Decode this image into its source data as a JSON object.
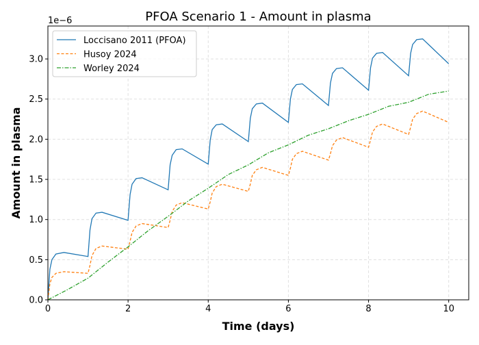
{
  "chart_data": {
    "type": "line",
    "title": "PFOA Scenario 1 - Amount in plasma",
    "xlabel": "Time (days)",
    "ylabel": "Amount in plasma",
    "y_offset_label": "1e−6",
    "xlim": [
      0,
      10.5
    ],
    "ylim": [
      0,
      3.41
    ],
    "xticks": [
      0,
      2,
      4,
      6,
      8,
      10
    ],
    "xtick_labels": [
      "0",
      "2",
      "4",
      "6",
      "8",
      "10"
    ],
    "yticks": [
      0,
      0.5,
      1.0,
      1.5,
      2.0,
      2.5,
      3.0
    ],
    "ytick_labels": [
      "0.0",
      "0.5",
      "1.0",
      "1.5",
      "2.0",
      "2.5",
      "3.0"
    ],
    "grid": true,
    "legend_position": "top-left",
    "series": [
      {
        "name": "Loccisano 2011 (PFOA)",
        "color": "#1f77b4",
        "style": "solid",
        "x": [
          0,
          0.05,
          0.1,
          0.2,
          0.4,
          1,
          1.05,
          1.1,
          1.2,
          1.35,
          2,
          2.05,
          2.1,
          2.2,
          2.35,
          3,
          3.05,
          3.1,
          3.2,
          3.35,
          4,
          4.05,
          4.1,
          4.2,
          4.35,
          5,
          5.05,
          5.1,
          5.2,
          5.35,
          6,
          6.05,
          6.1,
          6.2,
          6.35,
          7,
          7.05,
          7.1,
          7.2,
          7.35,
          8,
          8.05,
          8.1,
          8.2,
          8.35,
          9,
          9.05,
          9.1,
          9.2,
          9.35,
          10
        ],
        "y": [
          0,
          0.38,
          0.5,
          0.57,
          0.59,
          0.54,
          0.87,
          1.01,
          1.08,
          1.09,
          0.99,
          1.31,
          1.44,
          1.51,
          1.52,
          1.37,
          1.68,
          1.8,
          1.87,
          1.88,
          1.69,
          1.99,
          2.12,
          2.18,
          2.19,
          1.97,
          2.26,
          2.38,
          2.44,
          2.45,
          2.21,
          2.5,
          2.62,
          2.68,
          2.69,
          2.42,
          2.7,
          2.82,
          2.88,
          2.89,
          2.61,
          2.89,
          3.01,
          3.07,
          3.08,
          2.79,
          3.07,
          3.18,
          3.24,
          3.25,
          2.94
        ]
      },
      {
        "name": "Husoy 2024",
        "color": "#ff7f0e",
        "style": "dashed",
        "x": [
          0,
          0.05,
          0.1,
          0.2,
          0.4,
          1,
          1.05,
          1.1,
          1.2,
          1.35,
          2,
          2.05,
          2.1,
          2.2,
          2.35,
          3,
          3.05,
          3.1,
          3.2,
          3.35,
          4,
          4.05,
          4.1,
          4.2,
          4.35,
          5,
          5.05,
          5.1,
          5.2,
          5.35,
          6,
          6.05,
          6.1,
          6.2,
          6.35,
          7,
          7.05,
          7.1,
          7.2,
          7.35,
          8,
          8.05,
          8.1,
          8.2,
          8.35,
          9,
          9.05,
          9.1,
          9.2,
          9.35,
          10
        ],
        "y": [
          0,
          0.2,
          0.28,
          0.33,
          0.35,
          0.33,
          0.43,
          0.55,
          0.64,
          0.67,
          0.63,
          0.73,
          0.84,
          0.92,
          0.95,
          0.9,
          0.99,
          1.1,
          1.18,
          1.21,
          1.13,
          1.22,
          1.33,
          1.41,
          1.44,
          1.35,
          1.44,
          1.55,
          1.62,
          1.65,
          1.55,
          1.64,
          1.75,
          1.82,
          1.85,
          1.74,
          1.82,
          1.92,
          1.99,
          2.02,
          1.9,
          1.99,
          2.09,
          2.16,
          2.19,
          2.06,
          2.15,
          2.25,
          2.32,
          2.35,
          2.21
        ]
      },
      {
        "name": "Worley 2024",
        "color": "#2ca02c",
        "style": "dashdot",
        "x": [
          0,
          0.5,
          1,
          1.5,
          2,
          2.5,
          3,
          3.5,
          4,
          4.5,
          5,
          5.5,
          6,
          6.5,
          7,
          7.5,
          8,
          8.5,
          9,
          9.5,
          10
        ],
        "y": [
          0,
          0.13,
          0.27,
          0.47,
          0.66,
          0.86,
          1.04,
          1.23,
          1.39,
          1.56,
          1.68,
          1.83,
          1.93,
          2.05,
          2.13,
          2.23,
          2.31,
          2.41,
          2.46,
          2.56,
          2.6
        ]
      }
    ]
  }
}
